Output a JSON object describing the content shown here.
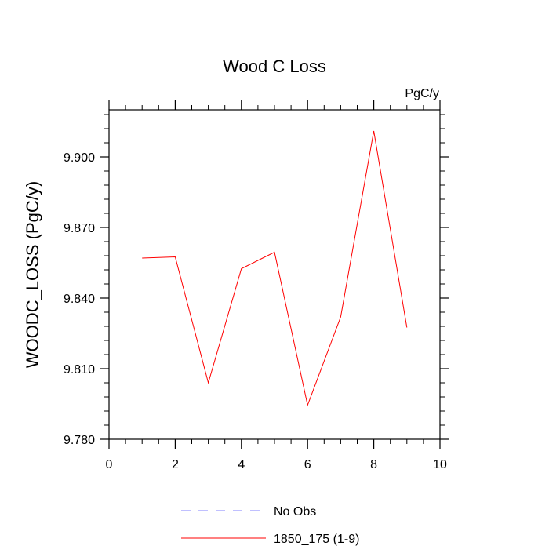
{
  "chart_data": {
    "type": "line",
    "title": "Wood C Loss",
    "units_label": "PgC/y",
    "ylabel": "WOODC_LOSS  (PgC/y)",
    "xlabel": "",
    "xlim": [
      0,
      10
    ],
    "ylim": [
      9.78,
      9.92
    ],
    "x_ticks": [
      0,
      2,
      4,
      6,
      8,
      10
    ],
    "x_tick_labels": [
      "0",
      "2",
      "4",
      "6",
      "8",
      "10"
    ],
    "y_ticks": [
      9.78,
      9.81,
      9.84,
      9.87,
      9.9
    ],
    "y_tick_labels": [
      "9.780",
      "9.810",
      "9.840",
      "9.870",
      "9.900"
    ],
    "grid": false,
    "legend_placement": "bottom-center",
    "series": [
      {
        "name": "1850_175 (1-9)",
        "color": "#ff0000",
        "style": "solid",
        "x": [
          1,
          2,
          3,
          4,
          5,
          6,
          7,
          8,
          9
        ],
        "values": [
          9.857,
          9.8575,
          9.804,
          9.8525,
          9.8595,
          9.7945,
          9.832,
          9.911,
          9.8275
        ]
      }
    ],
    "legend": [
      {
        "name": "No Obs",
        "color": "#8080ff",
        "style": "dashed"
      },
      {
        "name": "1850_175 (1-9)",
        "color": "#ff0000",
        "style": "solid"
      }
    ]
  }
}
